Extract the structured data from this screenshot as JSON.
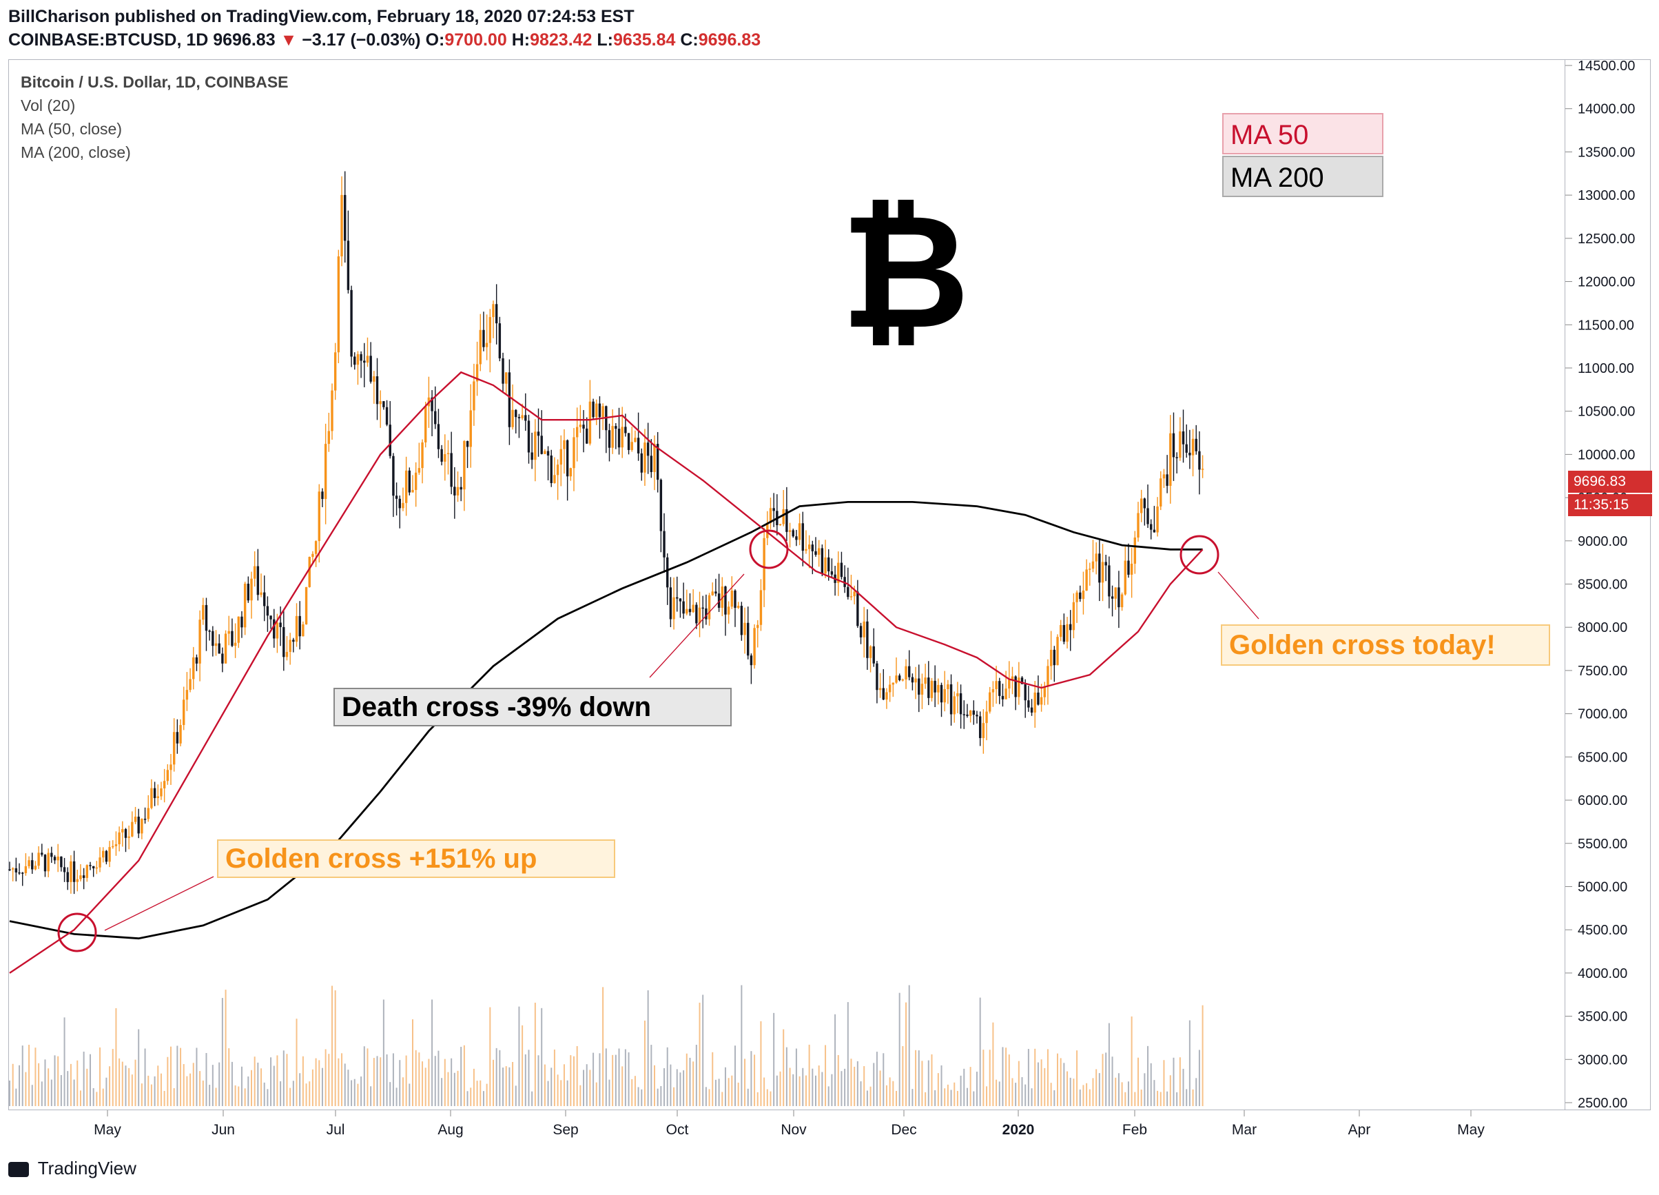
{
  "header": {
    "line1": "BillCharison published on TradingView.com, February 18, 2020 07:24:53 EST",
    "symbol": "COINBASE:BTCUSD, 1D",
    "last": "9696.83",
    "change": "−3.17 (−0.03%)",
    "o_label": "O:",
    "o": "9700.00",
    "h_label": "H:",
    "h": "9823.42",
    "l_label": "L:",
    "l": "9635.84",
    "c_label": "C:",
    "c": "9696.83",
    "down_arrow": "▼"
  },
  "legend": {
    "title": "Bitcoin / U.S. Dollar, 1D, COINBASE",
    "vol": "Vol (20)",
    "ma50": "MA (50, close)",
    "ma200": "MA (200, close)"
  },
  "colors": {
    "up": "#f7931a",
    "down": "#131722",
    "ma50": "#c8102e",
    "ma200": "#000000",
    "annotation_orange": "#f7931a",
    "price_tag": "#d32f2f"
  },
  "annotations": {
    "ma50_box": "MA 50",
    "ma200_box": "MA 200",
    "golden_cross_up": "Golden cross +151% up",
    "death_cross": "Death cross -39% down",
    "golden_cross_today": "Golden cross today!",
    "bitcoin_symbol": "₿"
  },
  "price_tags": {
    "last_price": "9696.83",
    "countdown": "11:35:15"
  },
  "footer": {
    "brand": "TradingView"
  },
  "chart_data": {
    "type": "candlestick",
    "title": "Bitcoin / U.S. Dollar, 1D, COINBASE",
    "ylim": [
      2400,
      14600
    ],
    "x_ticks": [
      "May",
      "Jun",
      "Jul",
      "Aug",
      "Sep",
      "Oct",
      "Nov",
      "Dec",
      "2020",
      "Feb",
      "Mar",
      "Apr",
      "May"
    ],
    "y_ticks": [
      "14500.00",
      "14000.00",
      "13500.00",
      "13000.00",
      "12500.00",
      "12000.00",
      "11500.00",
      "11000.00",
      "10500.00",
      "10000.00",
      "9500.00",
      "9000.00",
      "8500.00",
      "8000.00",
      "7500.00",
      "7000.00",
      "6500.00",
      "6000.00",
      "5500.00",
      "5000.00",
      "4500.00",
      "4000.00",
      "3500.00",
      "3000.00",
      "2500.00"
    ],
    "price_path": [
      [
        0,
        5200
      ],
      [
        10,
        5300
      ],
      [
        20,
        5150
      ],
      [
        30,
        5400
      ],
      [
        40,
        5700
      ],
      [
        50,
        6500
      ],
      [
        55,
        7200
      ],
      [
        60,
        8100
      ],
      [
        65,
        7700
      ],
      [
        70,
        7900
      ],
      [
        75,
        8600
      ],
      [
        80,
        8300
      ],
      [
        85,
        7700
      ],
      [
        90,
        8000
      ],
      [
        95,
        9000
      ],
      [
        100,
        10800
      ],
      [
        103,
        12800
      ],
      [
        106,
        11200
      ],
      [
        110,
        11300
      ],
      [
        115,
        10500
      ],
      [
        120,
        9500
      ],
      [
        125,
        9700
      ],
      [
        130,
        10500
      ],
      [
        135,
        9900
      ],
      [
        140,
        9600
      ],
      [
        145,
        11300
      ],
      [
        150,
        11500
      ],
      [
        155,
        10500
      ],
      [
        160,
        10200
      ],
      [
        165,
        10000
      ],
      [
        170,
        9800
      ],
      [
        175,
        10100
      ],
      [
        180,
        10400
      ],
      [
        185,
        10300
      ],
      [
        190,
        10100
      ],
      [
        195,
        10000
      ],
      [
        200,
        9900
      ],
      [
        205,
        8300
      ],
      [
        210,
        8100
      ],
      [
        215,
        8200
      ],
      [
        220,
        8300
      ],
      [
        225,
        8400
      ],
      [
        230,
        7500
      ],
      [
        235,
        9300
      ],
      [
        240,
        9200
      ],
      [
        245,
        9100
      ],
      [
        250,
        8900
      ],
      [
        255,
        8600
      ],
      [
        260,
        8500
      ],
      [
        265,
        7900
      ],
      [
        270,
        7300
      ],
      [
        275,
        7500
      ],
      [
        280,
        7400
      ],
      [
        285,
        7300
      ],
      [
        290,
        7200
      ],
      [
        295,
        7100
      ],
      [
        300,
        6800
      ],
      [
        305,
        7200
      ],
      [
        310,
        7300
      ],
      [
        315,
        7200
      ],
      [
        320,
        7100
      ],
      [
        325,
        7900
      ],
      [
        330,
        8200
      ],
      [
        335,
        8800
      ],
      [
        340,
        8600
      ],
      [
        345,
        8400
      ],
      [
        350,
        9300
      ],
      [
        355,
        9300
      ],
      [
        360,
        10000
      ],
      [
        365,
        10200
      ],
      [
        370,
        9700
      ]
    ],
    "ma50": [
      [
        0,
        4000
      ],
      [
        20,
        4500
      ],
      [
        40,
        5300
      ],
      [
        60,
        6600
      ],
      [
        80,
        7900
      ],
      [
        100,
        9100
      ],
      [
        115,
        10000
      ],
      [
        130,
        10600
      ],
      [
        140,
        10950
      ],
      [
        150,
        10800
      ],
      [
        165,
        10400
      ],
      [
        180,
        10400
      ],
      [
        190,
        10450
      ],
      [
        200,
        10100
      ],
      [
        215,
        9700
      ],
      [
        230,
        9250
      ],
      [
        240,
        8950
      ],
      [
        250,
        8650
      ],
      [
        260,
        8500
      ],
      [
        275,
        8000
      ],
      [
        290,
        7800
      ],
      [
        300,
        7650
      ],
      [
        310,
        7400
      ],
      [
        320,
        7300
      ],
      [
        335,
        7450
      ],
      [
        350,
        7950
      ],
      [
        360,
        8500
      ],
      [
        370,
        8900
      ]
    ],
    "ma200": [
      [
        0,
        4600
      ],
      [
        20,
        4450
      ],
      [
        40,
        4400
      ],
      [
        60,
        4550
      ],
      [
        80,
        4850
      ],
      [
        100,
        5450
      ],
      [
        115,
        6100
      ],
      [
        130,
        6800
      ],
      [
        150,
        7550
      ],
      [
        170,
        8100
      ],
      [
        190,
        8450
      ],
      [
        210,
        8750
      ],
      [
        230,
        9100
      ],
      [
        245,
        9400
      ],
      [
        260,
        9450
      ],
      [
        280,
        9450
      ],
      [
        300,
        9400
      ],
      [
        315,
        9300
      ],
      [
        330,
        9100
      ],
      [
        345,
        8950
      ],
      [
        360,
        8900
      ],
      [
        370,
        8900
      ]
    ]
  }
}
